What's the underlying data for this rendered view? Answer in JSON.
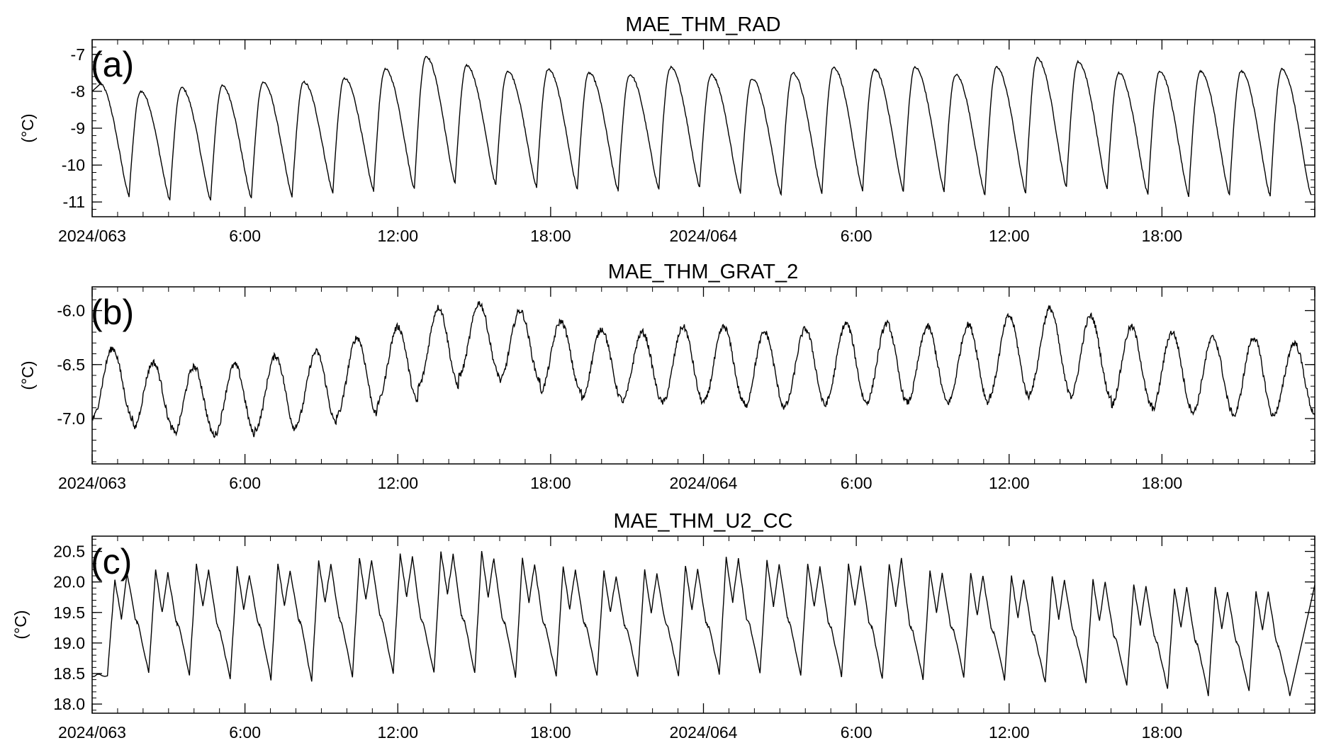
{
  "chart_data": [
    {
      "type": "line",
      "title": "MAE_THM_RAD",
      "panel_label": "(a)",
      "ylabel": "(°C)",
      "x_start": "2024/063 00:00",
      "x_end": "2024/064 24:00",
      "x_ticks": [
        "2024/063",
        "6:00",
        "12:00",
        "18:00",
        "2024/064",
        "6:00",
        "12:00",
        "18:00"
      ],
      "y_ticks": [
        "-7",
        "-8",
        "-9",
        "-10",
        "-11"
      ],
      "ylim": [
        -11.4,
        -6.6
      ],
      "grid": false,
      "series_color": "#000000",
      "series": [
        {
          "period_hours": 1.6,
          "cycles": [
            {
              "peak_hour": 0.3,
              "max": -7.8,
              "min": -10.85
            },
            {
              "peak_hour": 1.9,
              "max": -8.0,
              "min": -10.95
            },
            {
              "peak_hour": 3.5,
              "max": -7.9,
              "min": -10.95
            },
            {
              "peak_hour": 5.1,
              "max": -7.85,
              "min": -10.9
            },
            {
              "peak_hour": 6.7,
              "max": -7.75,
              "min": -10.85
            },
            {
              "peak_hour": 8.3,
              "max": -7.75,
              "min": -10.75
            },
            {
              "peak_hour": 9.9,
              "max": -7.65,
              "min": -10.7
            },
            {
              "peak_hour": 11.5,
              "max": -7.4,
              "min": -10.65
            },
            {
              "peak_hour": 13.1,
              "max": -7.05,
              "min": -10.5
            },
            {
              "peak_hour": 14.7,
              "max": -7.3,
              "min": -10.55
            },
            {
              "peak_hour": 16.3,
              "max": -7.45,
              "min": -10.6
            },
            {
              "peak_hour": 17.9,
              "max": -7.4,
              "min": -10.65
            },
            {
              "peak_hour": 19.5,
              "max": -7.5,
              "min": -10.7
            },
            {
              "peak_hour": 21.1,
              "max": -7.55,
              "min": -10.65
            },
            {
              "peak_hour": 22.7,
              "max": -7.35,
              "min": -10.6
            },
            {
              "peak_hour": 24.3,
              "max": -7.55,
              "min": -10.75
            },
            {
              "peak_hour": 25.9,
              "max": -7.65,
              "min": -10.8
            },
            {
              "peak_hour": 27.5,
              "max": -7.5,
              "min": -10.75
            },
            {
              "peak_hour": 29.1,
              "max": -7.35,
              "min": -10.7
            },
            {
              "peak_hour": 30.7,
              "max": -7.4,
              "min": -10.7
            },
            {
              "peak_hour": 32.3,
              "max": -7.35,
              "min": -10.7
            },
            {
              "peak_hour": 33.9,
              "max": -7.55,
              "min": -10.8
            },
            {
              "peak_hour": 35.5,
              "max": -7.35,
              "min": -10.75
            },
            {
              "peak_hour": 37.1,
              "max": -7.1,
              "min": -10.6
            },
            {
              "peak_hour": 38.7,
              "max": -7.2,
              "min": -10.65
            },
            {
              "peak_hour": 40.3,
              "max": -7.5,
              "min": -10.8
            },
            {
              "peak_hour": 41.9,
              "max": -7.45,
              "min": -10.85
            },
            {
              "peak_hour": 43.5,
              "max": -7.45,
              "min": -10.8
            },
            {
              "peak_hour": 45.1,
              "max": -7.45,
              "min": -10.85
            },
            {
              "peak_hour": 46.7,
              "max": -7.4,
              "min": -10.8
            }
          ]
        }
      ]
    },
    {
      "type": "line",
      "title": "MAE_THM_GRAT_2",
      "panel_label": "(b)",
      "ylabel": "(°C)",
      "x_start": "2024/063 00:00",
      "x_end": "2024/064 24:00",
      "x_ticks": [
        "2024/063",
        "6:00",
        "12:00",
        "18:00",
        "2024/064",
        "6:00",
        "12:00",
        "18:00"
      ],
      "y_ticks": [
        "-6.0",
        "-6.5",
        "-7.0"
      ],
      "ylim": [
        -7.42,
        -5.78
      ],
      "grid": false,
      "series_color": "#000000",
      "series": [
        {
          "period_hours": 1.6,
          "cycles": [
            {
              "peak_hour": 0.8,
              "max": -6.35,
              "min": -7.0
            },
            {
              "peak_hour": 2.4,
              "max": -6.48,
              "min": -7.1
            },
            {
              "peak_hour": 4.0,
              "max": -6.52,
              "min": -7.15
            },
            {
              "peak_hour": 5.6,
              "max": -6.5,
              "min": -7.15
            },
            {
              "peak_hour": 7.2,
              "max": -6.42,
              "min": -7.1
            },
            {
              "peak_hour": 8.8,
              "max": -6.38,
              "min": -7.05
            },
            {
              "peak_hour": 10.4,
              "max": -6.25,
              "min": -6.97
            },
            {
              "peak_hour": 12.0,
              "max": -6.15,
              "min": -6.85
            },
            {
              "peak_hour": 13.6,
              "max": -5.97,
              "min": -6.7
            },
            {
              "peak_hour": 15.2,
              "max": -5.93,
              "min": -6.6
            },
            {
              "peak_hour": 16.8,
              "max": -6.0,
              "min": -6.65
            },
            {
              "peak_hour": 18.4,
              "max": -6.1,
              "min": -6.75
            },
            {
              "peak_hour": 20.0,
              "max": -6.17,
              "min": -6.82
            },
            {
              "peak_hour": 21.6,
              "max": -6.2,
              "min": -6.85
            },
            {
              "peak_hour": 23.2,
              "max": -6.15,
              "min": -6.85
            },
            {
              "peak_hour": 24.8,
              "max": -6.15,
              "min": -6.85
            },
            {
              "peak_hour": 26.4,
              "max": -6.2,
              "min": -6.9
            },
            {
              "peak_hour": 28.0,
              "max": -6.17,
              "min": -6.88
            },
            {
              "peak_hour": 29.6,
              "max": -6.12,
              "min": -6.85
            },
            {
              "peak_hour": 31.2,
              "max": -6.12,
              "min": -6.85
            },
            {
              "peak_hour": 32.8,
              "max": -6.15,
              "min": -6.85
            },
            {
              "peak_hour": 34.4,
              "max": -6.13,
              "min": -6.85
            },
            {
              "peak_hour": 36.0,
              "max": -6.05,
              "min": -6.8
            },
            {
              "peak_hour": 37.6,
              "max": -5.98,
              "min": -6.75
            },
            {
              "peak_hour": 39.2,
              "max": -6.05,
              "min": -6.8
            },
            {
              "peak_hour": 40.8,
              "max": -6.15,
              "min": -6.88
            },
            {
              "peak_hour": 42.4,
              "max": -6.2,
              "min": -6.92
            },
            {
              "peak_hour": 44.0,
              "max": -6.25,
              "min": -6.95
            },
            {
              "peak_hour": 45.6,
              "max": -6.25,
              "min": -6.98
            },
            {
              "peak_hour": 47.2,
              "max": -6.3,
              "min": -6.95
            }
          ]
        }
      ]
    },
    {
      "type": "line",
      "title": "MAE_THM_U2_CC",
      "panel_label": "(c)",
      "ylabel": "(°C)",
      "x_start": "2024/063 00:00",
      "x_end": "2024/064 24:00",
      "x_ticks": [
        "2024/063",
        "6:00",
        "12:00",
        "18:00",
        "2024/064",
        "6:00",
        "12:00",
        "18:00"
      ],
      "y_ticks": [
        "20.5",
        "20.0",
        "19.5",
        "19.0",
        "18.5",
        "18.0"
      ],
      "ylim": [
        17.85,
        20.75
      ],
      "grid": false,
      "series_color": "#000000",
      "series": [
        {
          "period_hours": 1.6,
          "start_hour": 0.7,
          "initial_value": 18.45,
          "cycles": [
            {
              "peak1": 20.05,
              "mid": 19.4,
              "peak2": 20.15,
              "shoulder": 19.4,
              "min": 18.5
            },
            {
              "peak1": 20.2,
              "mid": 19.5,
              "peak2": 20.15,
              "shoulder": 19.35,
              "min": 18.45
            },
            {
              "peak1": 20.3,
              "mid": 19.6,
              "peak2": 20.2,
              "shoulder": 19.3,
              "min": 18.4
            },
            {
              "peak1": 20.25,
              "mid": 19.55,
              "peak2": 20.1,
              "shoulder": 19.35,
              "min": 18.4
            },
            {
              "peak1": 20.3,
              "mid": 19.6,
              "peak2": 20.2,
              "shoulder": 19.4,
              "min": 18.35
            },
            {
              "peak1": 20.35,
              "mid": 19.65,
              "peak2": 20.3,
              "shoulder": 19.4,
              "min": 18.45
            },
            {
              "peak1": 20.4,
              "mid": 19.7,
              "peak2": 20.35,
              "shoulder": 19.45,
              "min": 18.5
            },
            {
              "peak1": 20.45,
              "mid": 19.75,
              "peak2": 20.4,
              "shoulder": 19.4,
              "min": 18.5
            },
            {
              "peak1": 20.5,
              "mid": 19.8,
              "peak2": 20.45,
              "shoulder": 19.45,
              "min": 18.5
            },
            {
              "peak1": 20.5,
              "mid": 19.75,
              "peak2": 20.4,
              "shoulder": 19.4,
              "min": 18.45
            },
            {
              "peak1": 20.4,
              "mid": 19.65,
              "peak2": 20.3,
              "shoulder": 19.35,
              "min": 18.45
            },
            {
              "peak1": 20.25,
              "mid": 19.55,
              "peak2": 20.2,
              "shoulder": 19.35,
              "min": 18.45
            },
            {
              "peak1": 20.2,
              "mid": 19.5,
              "peak2": 20.1,
              "shoulder": 19.3,
              "min": 18.45
            },
            {
              "peak1": 20.2,
              "mid": 19.5,
              "peak2": 20.15,
              "shoulder": 19.35,
              "min": 18.45
            },
            {
              "peak1": 20.25,
              "mid": 19.55,
              "peak2": 20.2,
              "shoulder": 19.35,
              "min": 18.5
            },
            {
              "peak1": 20.4,
              "mid": 19.65,
              "peak2": 20.4,
              "shoulder": 19.4,
              "min": 18.5
            },
            {
              "peak1": 20.35,
              "mid": 19.6,
              "peak2": 20.3,
              "shoulder": 19.4,
              "min": 18.45
            },
            {
              "peak1": 20.3,
              "mid": 19.6,
              "peak2": 20.25,
              "shoulder": 19.35,
              "min": 18.45
            },
            {
              "peak1": 20.3,
              "mid": 19.6,
              "peak2": 20.25,
              "shoulder": 19.35,
              "min": 18.4
            },
            {
              "peak1": 20.3,
              "mid": 19.6,
              "peak2": 20.4,
              "shoulder": 19.3,
              "min": 18.4
            },
            {
              "peak1": 20.2,
              "mid": 19.5,
              "peak2": 20.15,
              "shoulder": 19.3,
              "min": 18.45
            },
            {
              "peak1": 20.15,
              "mid": 19.45,
              "peak2": 20.1,
              "shoulder": 19.25,
              "min": 18.4
            },
            {
              "peak1": 20.1,
              "mid": 19.4,
              "peak2": 20.05,
              "shoulder": 19.2,
              "min": 18.35
            },
            {
              "peak1": 20.1,
              "mid": 19.4,
              "peak2": 20.05,
              "shoulder": 19.2,
              "min": 18.35
            },
            {
              "peak1": 20.05,
              "mid": 19.35,
              "peak2": 20.0,
              "shoulder": 19.15,
              "min": 18.3
            },
            {
              "peak1": 19.95,
              "mid": 19.3,
              "peak2": 19.95,
              "shoulder": 19.1,
              "min": 18.25
            },
            {
              "peak1": 19.9,
              "mid": 19.25,
              "peak2": 19.9,
              "shoulder": 19.05,
              "min": 18.15
            },
            {
              "peak1": 19.9,
              "mid": 19.25,
              "peak2": 19.85,
              "shoulder": 19.05,
              "min": 18.2
            },
            {
              "peak1": 19.85,
              "mid": 19.2,
              "peak2": 19.85,
              "shoulder": 19.0,
              "min": 18.15
            }
          ],
          "end_value": 19.95
        }
      ]
    }
  ]
}
